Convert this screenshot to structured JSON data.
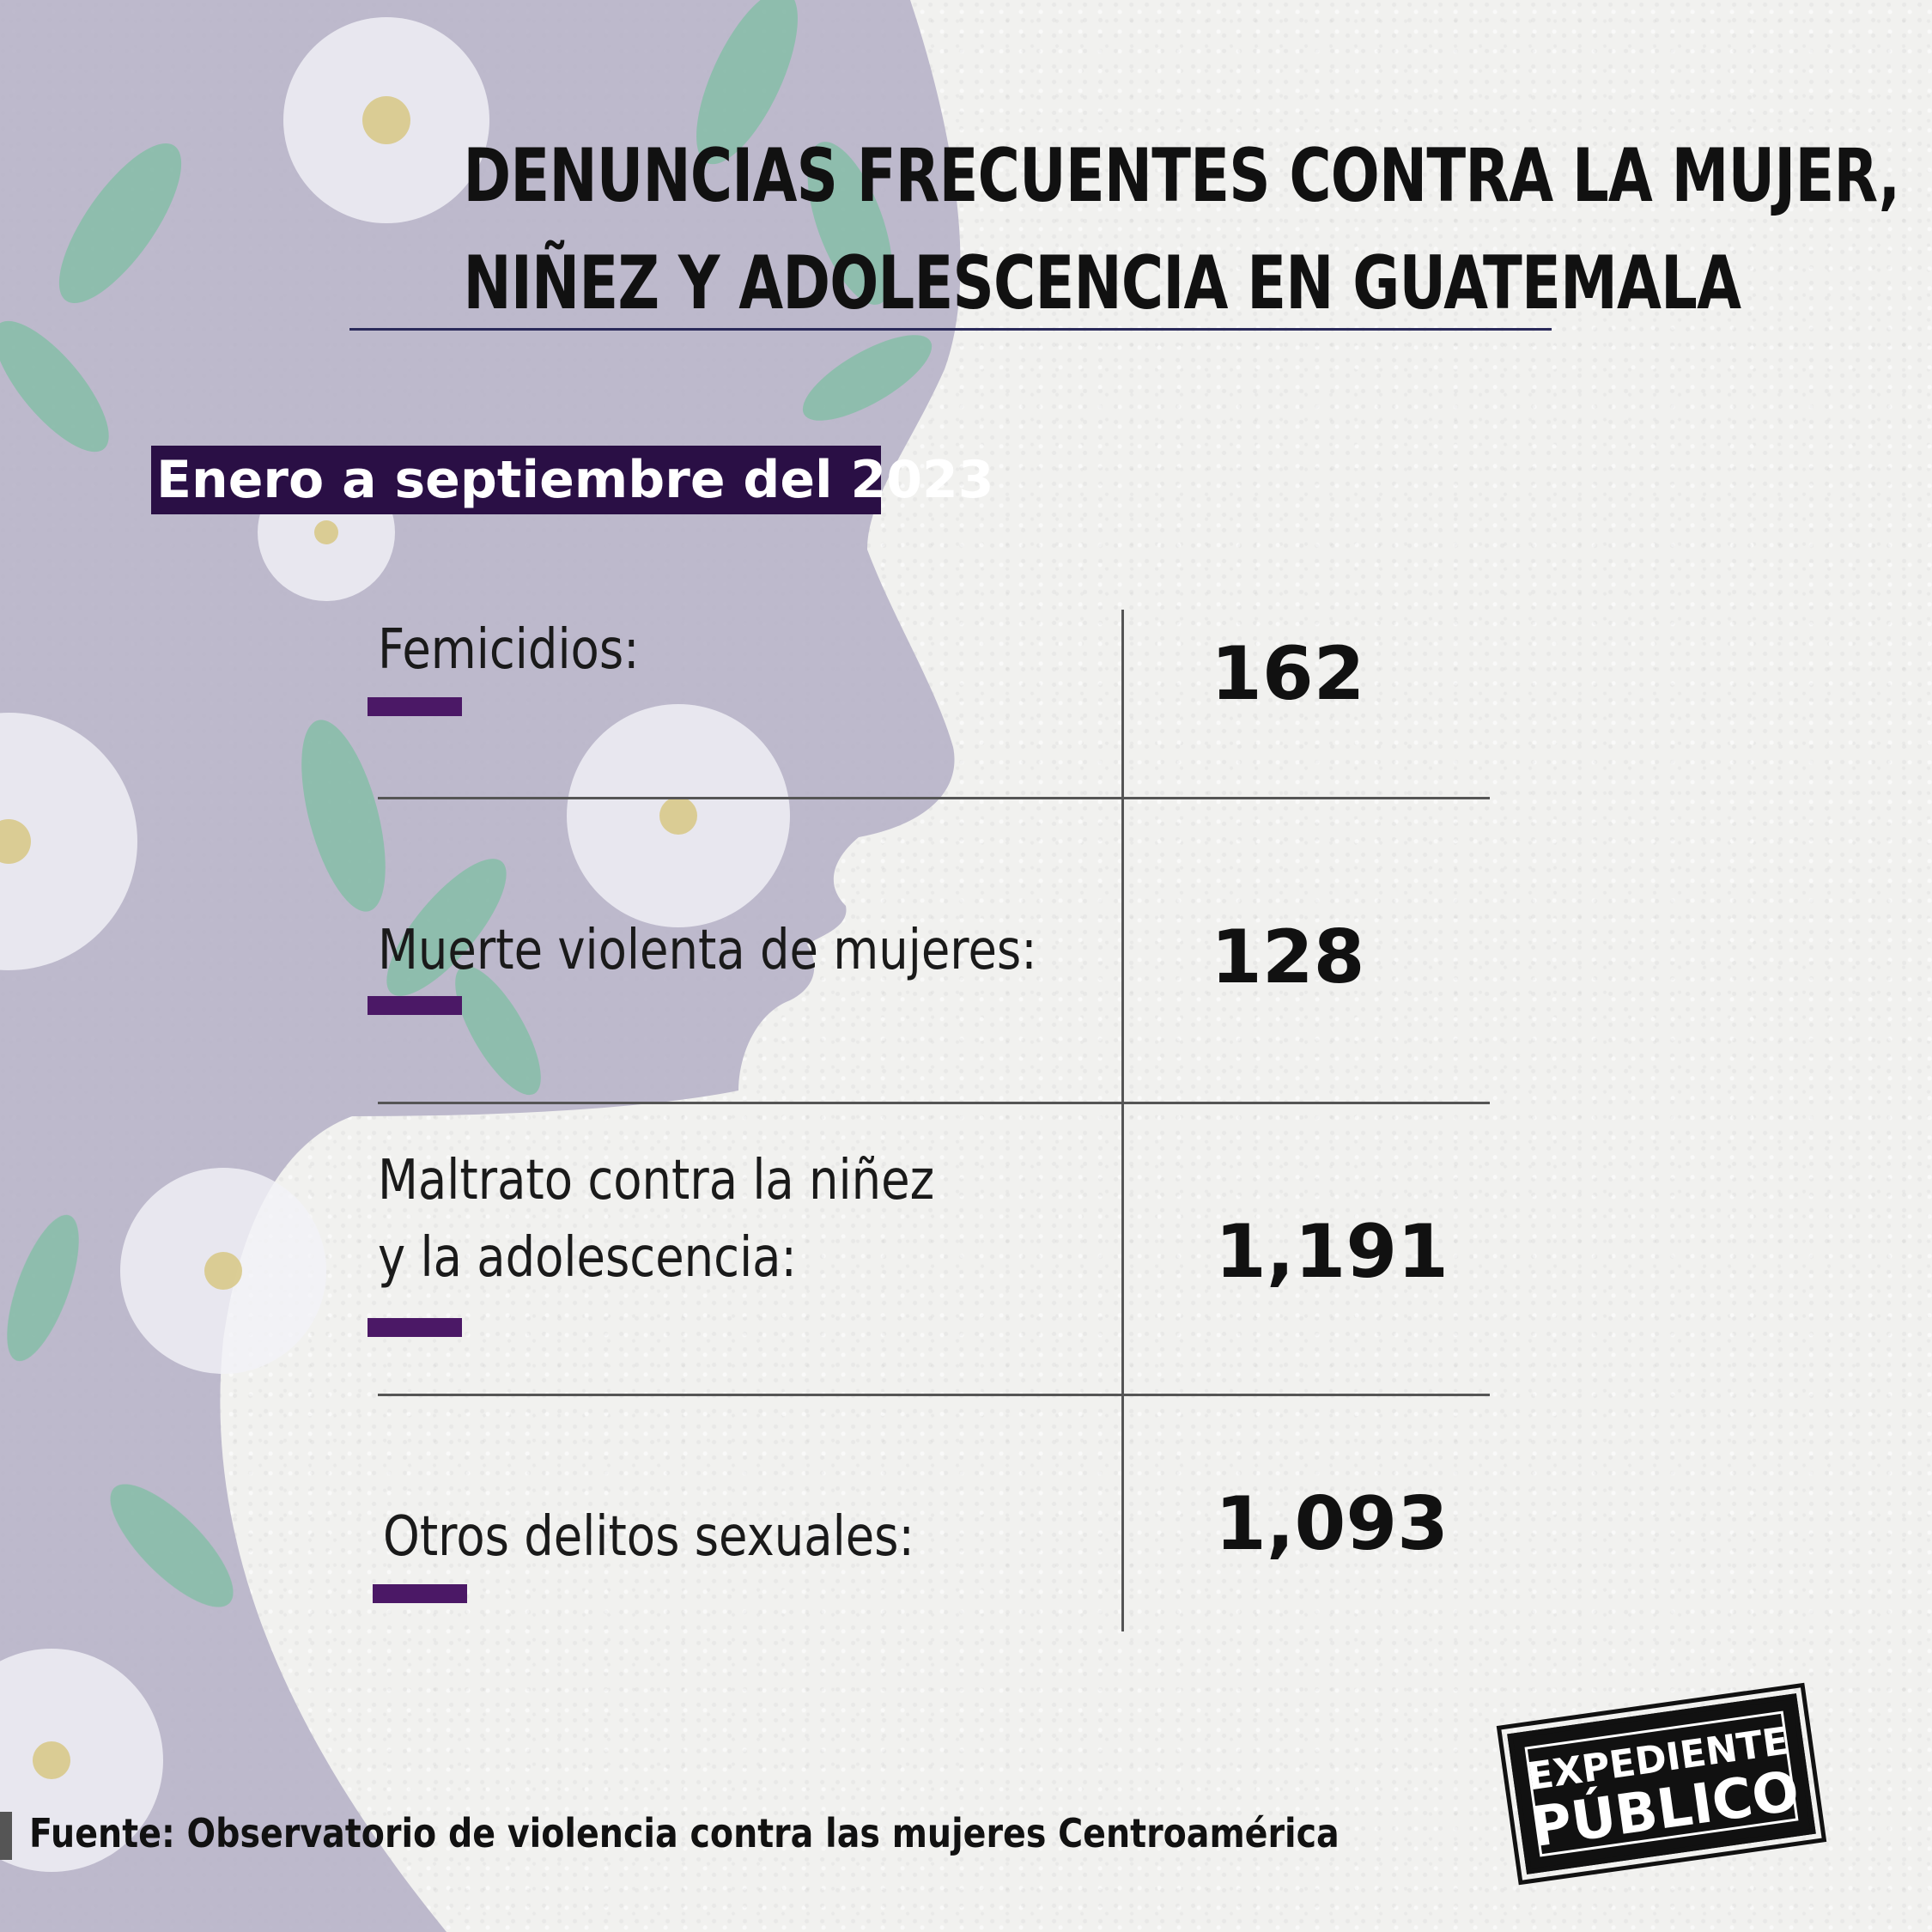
{
  "title": {
    "line1": "DENUNCIAS FRECUENTES CONTRA LA MUJER,",
    "line2": "NIÑEZ Y ADOLESCENCIA EN GUATEMALA"
  },
  "period": "Enero a septiembre del 2023",
  "rows": [
    {
      "label": "Femicidios:",
      "value": "162"
    },
    {
      "label": "Muerte violenta de mujeres:",
      "value": "128"
    },
    {
      "label_line1": "Maltrato contra la niñez",
      "label_line2": "y la adolescencia:",
      "value": "1,191"
    },
    {
      "label": "Otros delitos sexuales:",
      "value": "1,093"
    }
  ],
  "source": "Fuente: Observatorio de violencia contra las mujeres Centroamérica",
  "logo": {
    "line1": "EXPEDIENTE",
    "line2": "PÚBLICO"
  },
  "colors": {
    "background": "#f1f1ef",
    "silhouette": "#b7b3c8",
    "leaf": "#7fbfa3",
    "flower": "#f3f3f8",
    "accent": "#4b1866",
    "badge": "#2a0f45",
    "underline": "#2a2a5a"
  },
  "icons": [
    "face-silhouette",
    "daisy-flower",
    "leaf"
  ]
}
